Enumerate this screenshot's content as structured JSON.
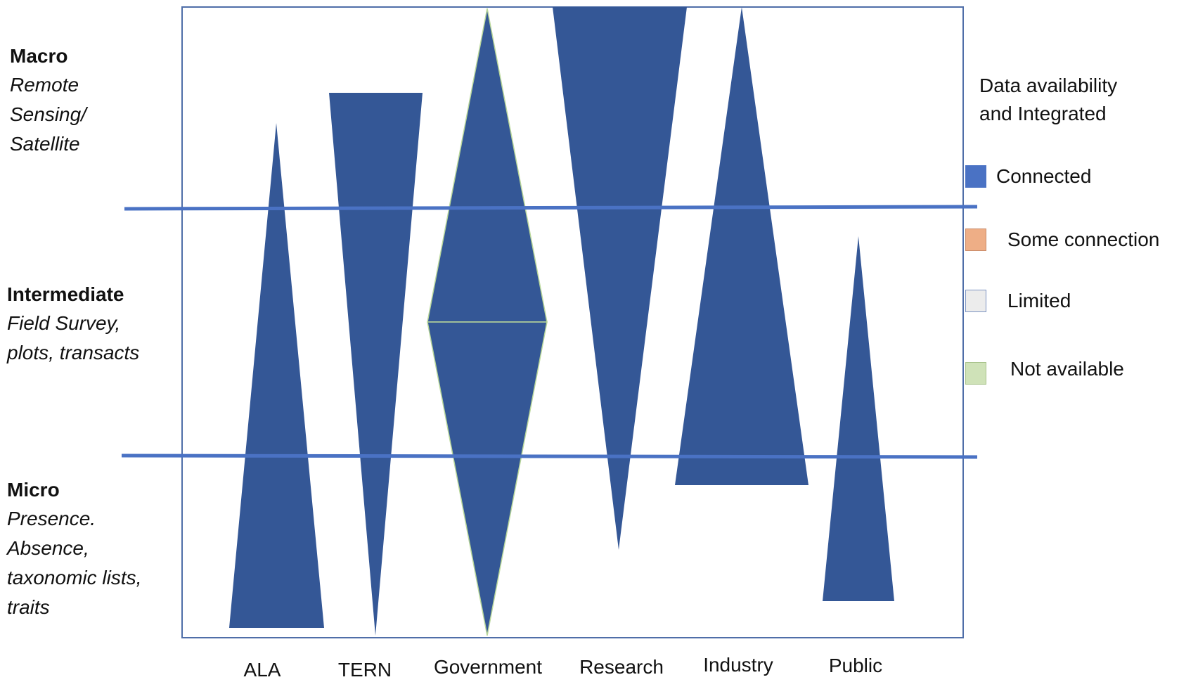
{
  "levels": [
    {
      "title": "Macro",
      "desc_lines": [
        "Remote",
        "Sensing/",
        "Satellite"
      ]
    },
    {
      "title": "Intermediate",
      "desc_lines": [
        "Field Survey,",
        "plots, transacts"
      ]
    },
    {
      "title": "Micro",
      "desc_lines": [
        "Presence.",
        "Absence,",
        "taxonomic lists,",
        "traits"
      ]
    }
  ],
  "legend": {
    "title_lines": [
      "Data availability",
      "and Integrated"
    ],
    "items": [
      {
        "label": "Connected",
        "color": "#4a72c4"
      },
      {
        "label": "Some connection",
        "color": "#eeae86"
      },
      {
        "label": "Limited",
        "color": "#ececec"
      },
      {
        "label": "Not available",
        "color": "#cfe2b8"
      }
    ]
  },
  "categories": [
    "ALA",
    "TERN",
    "Government",
    "Research",
    "Industry",
    "Public"
  ],
  "colors": {
    "shape_fill": "#345796",
    "divider_line": "#4a72c4",
    "frame": "#4f6ea8"
  }
}
